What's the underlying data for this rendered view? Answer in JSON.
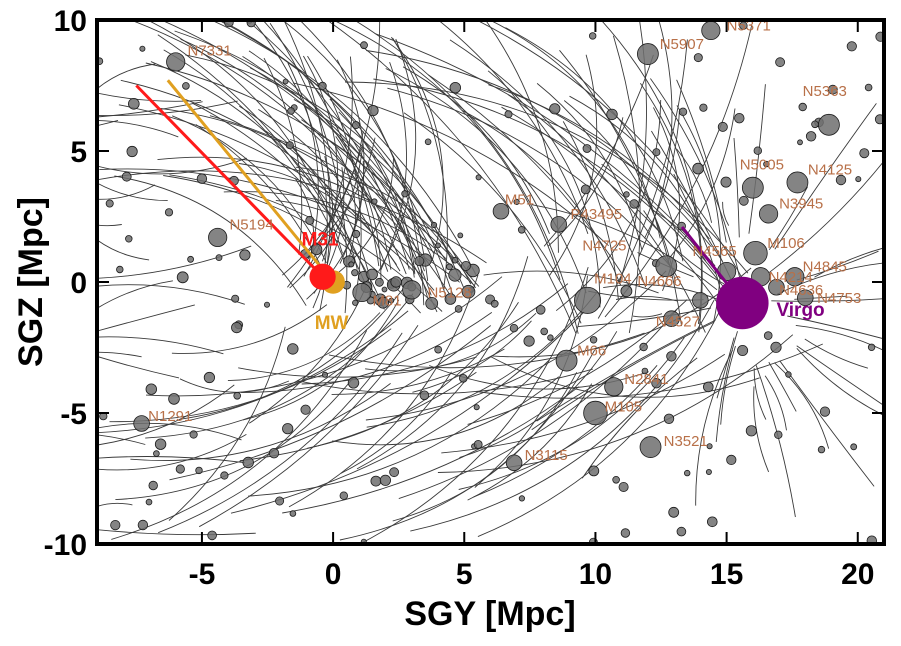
{
  "chart_data": {
    "type": "scatter",
    "title": "",
    "xlabel": "SGY [Mpc]",
    "ylabel": "SGZ [Mpc]",
    "xlim": [
      -9,
      21
    ],
    "ylim": [
      -10,
      10
    ],
    "xticks": [
      -5,
      0,
      5,
      10,
      15,
      20
    ],
    "yticks": [
      -10,
      -5,
      0,
      5,
      10
    ],
    "grid": false,
    "colors": {
      "trail": "#3a3a3a",
      "galaxy_fill": "#6e6e6e",
      "galaxy_label": "#b87048",
      "m31": "#ff1a1a",
      "mw": "#e0a020",
      "virgo": "#800080"
    },
    "special": [
      {
        "name": "M31",
        "x": -0.4,
        "y": 0.2,
        "size": 0.5,
        "color": "#ff1a1a",
        "trail_from": [
          -7.5,
          7.5
        ],
        "label_dx": -0.8,
        "label_dy": 1.2
      },
      {
        "name": "MW",
        "x": 0.0,
        "y": 0.0,
        "size": 0.45,
        "color": "#e0a020",
        "trail_from": [
          -6.3,
          7.7
        ],
        "label_dx": -0.7,
        "label_dy": -1.8
      },
      {
        "name": "Virgo",
        "x": 15.6,
        "y": -0.8,
        "size": 1.0,
        "color": "#800080",
        "trail_from": [
          13.3,
          2.1
        ],
        "label_dx": 1.3,
        "label_dy": -0.5
      }
    ],
    "galaxies": [
      {
        "name": "N7331",
        "x": -6.0,
        "y": 8.4,
        "size": 0.35,
        "dx": 0.45,
        "dy": 0.25
      },
      {
        "name": "N5907",
        "x": 12.0,
        "y": 8.7,
        "size": 0.4,
        "dx": 0.45,
        "dy": 0.2
      },
      {
        "name": "N5371",
        "x": 14.4,
        "y": 9.6,
        "size": 0.35,
        "dx": 0.6,
        "dy": 0.0
      },
      {
        "name": "N5363",
        "x": 18.9,
        "y": 6.0,
        "size": 0.4,
        "dx": -1.0,
        "dy": 1.1
      },
      {
        "name": "N5005",
        "x": 16.0,
        "y": 3.6,
        "size": 0.4,
        "dx": -0.5,
        "dy": 0.7
      },
      {
        "name": "N4125",
        "x": 17.7,
        "y": 3.8,
        "size": 0.4,
        "dx": 0.4,
        "dy": 0.3
      },
      {
        "name": "N3945",
        "x": 16.6,
        "y": 2.6,
        "size": 0.35,
        "dx": 0.4,
        "dy": 0.2
      },
      {
        "name": "N5194",
        "x": -4.4,
        "y": 1.7,
        "size": 0.35,
        "dx": 0.45,
        "dy": 0.3
      },
      {
        "name": "M51",
        "x": 6.4,
        "y": 2.7,
        "size": 0.3,
        "dx": 0.15,
        "dy": 0.25
      },
      {
        "name": "P43495",
        "x": 8.6,
        "y": 2.2,
        "size": 0.3,
        "dx": 0.45,
        "dy": 0.2
      },
      {
        "name": "N4725",
        "x": 12.7,
        "y": 0.6,
        "size": 0.4,
        "dx": -3.2,
        "dy": 0.6
      },
      {
        "name": "N4565",
        "x": 15.0,
        "y": 0.4,
        "size": 0.35,
        "dx": -1.3,
        "dy": 0.6
      },
      {
        "name": "M106",
        "x": 16.1,
        "y": 1.1,
        "size": 0.45,
        "dx": 0.45,
        "dy": 0.2
      },
      {
        "name": "N4845",
        "x": 17.6,
        "y": 0.2,
        "size": 0.35,
        "dx": 0.3,
        "dy": 0.2
      },
      {
        "name": "N4214",
        "x": 16.3,
        "y": 0.2,
        "size": 0.35,
        "dx": 0.3,
        "dy": -0.2
      },
      {
        "name": "N4636",
        "x": 16.9,
        "y": -0.2,
        "size": 0.3,
        "dx": 0.1,
        "dy": -0.3
      },
      {
        "name": "N4753",
        "x": 18.0,
        "y": -0.6,
        "size": 0.3,
        "dx": 0.45,
        "dy": -0.2
      },
      {
        "name": "M104",
        "x": 9.7,
        "y": -0.7,
        "size": 0.5,
        "dx": 0.25,
        "dy": 0.65
      },
      {
        "name": "N4666",
        "x": 14.0,
        "y": -0.7,
        "size": 0.3,
        "dx": -2.4,
        "dy": 0.55
      },
      {
        "name": "N4527",
        "x": 12.9,
        "y": -1.4,
        "size": 0.3,
        "dx": -0.6,
        "dy": -0.3
      },
      {
        "name": "M81",
        "x": 1.1,
        "y": -0.4,
        "size": 0.35,
        "dx": 0.4,
        "dy": -0.5
      },
      {
        "name": "N5128",
        "x": 3.0,
        "y": -0.3,
        "size": 0.35,
        "dx": 0.6,
        "dy": -0.3
      },
      {
        "name": "M66",
        "x": 8.9,
        "y": -3.0,
        "size": 0.4,
        "dx": 0.4,
        "dy": 0.2
      },
      {
        "name": "N2841",
        "x": 10.7,
        "y": -4.0,
        "size": 0.35,
        "dx": 0.4,
        "dy": 0.1
      },
      {
        "name": "M105",
        "x": 10.0,
        "y": -5.0,
        "size": 0.45,
        "dx": 0.35,
        "dy": 0.05
      },
      {
        "name": "N3521",
        "x": 12.1,
        "y": -6.3,
        "size": 0.4,
        "dx": 0.5,
        "dy": 0.05
      },
      {
        "name": "N3115",
        "x": 6.9,
        "y": -6.9,
        "size": 0.3,
        "dx": 0.4,
        "dy": 0.1
      },
      {
        "name": "N1291",
        "x": -7.3,
        "y": -5.4,
        "size": 0.3,
        "dx": 0.25,
        "dy": 0.1
      }
    ]
  }
}
